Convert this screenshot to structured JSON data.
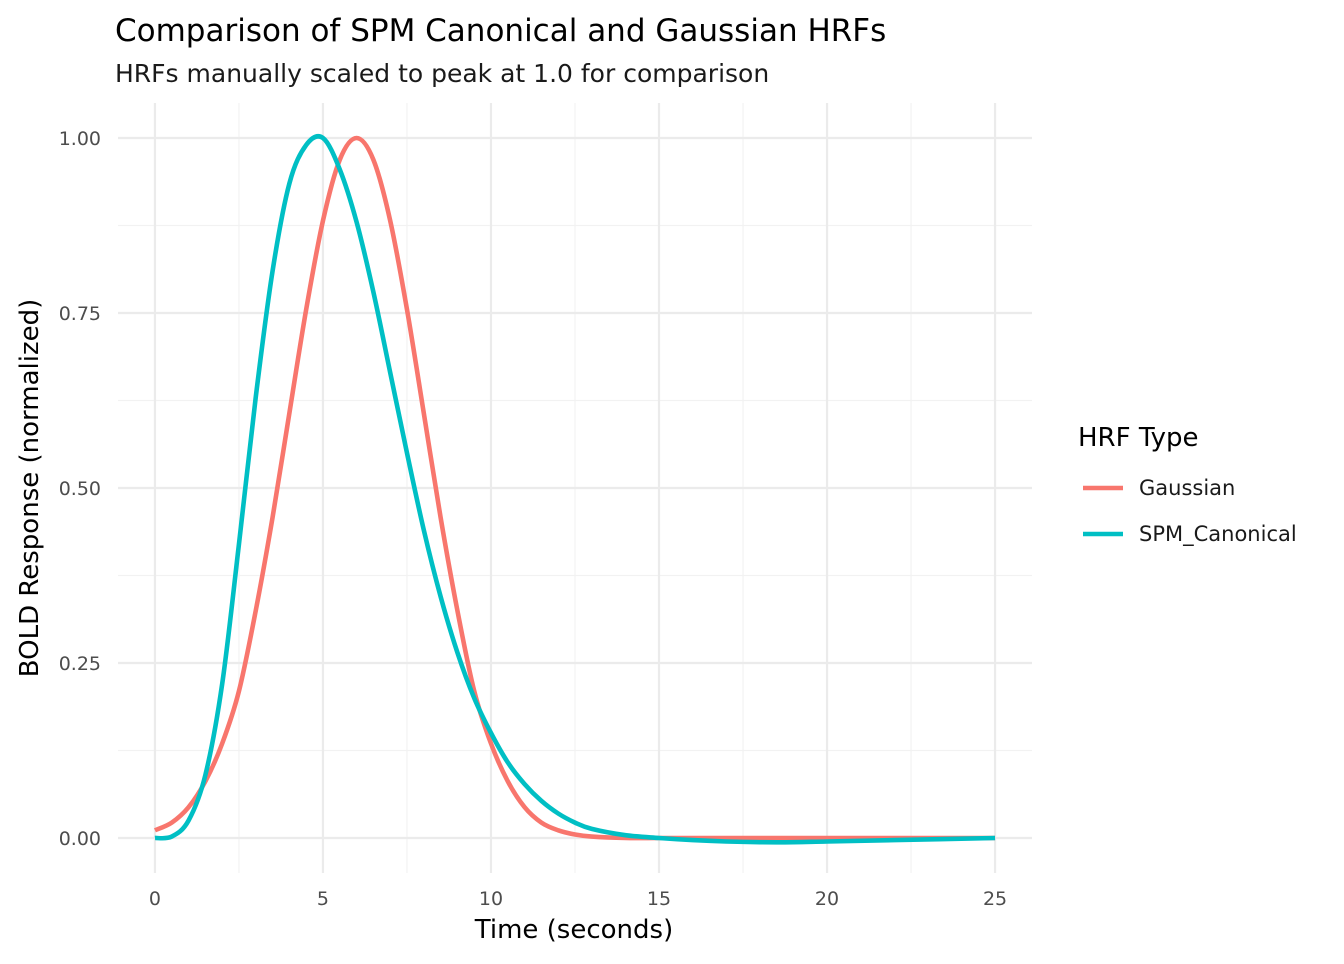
{
  "chart_data": {
    "type": "line",
    "title": "Comparison of SPM Canonical and Gaussian HRFs",
    "subtitle": "HRFs manually scaled to peak at 1.0 for comparison",
    "xlabel": "Time (seconds)",
    "ylabel": "BOLD Response (normalized)",
    "xlim": [
      -1.1,
      26.1
    ],
    "ylim": [
      -0.05,
      1.05
    ],
    "x_ticks": [
      0,
      5,
      10,
      15,
      20,
      25
    ],
    "x_tick_labels": [
      "0",
      "5",
      "10",
      "15",
      "20",
      "25"
    ],
    "y_ticks": [
      0,
      0.25,
      0.5,
      0.75,
      1.0
    ],
    "y_tick_labels": [
      "0.00",
      "0.25",
      "0.50",
      "0.75",
      "1.00"
    ],
    "grid": true,
    "legend": {
      "title": "HRF Type",
      "position": "right"
    },
    "series": [
      {
        "name": "Gaussian",
        "color": "#F8766D",
        "x": [
          0,
          0.5,
          1,
          1.5,
          2,
          2.5,
          3,
          3.5,
          4,
          4.5,
          5,
          5.5,
          6,
          6.5,
          7,
          7.5,
          8,
          8.5,
          9,
          9.5,
          10,
          10.5,
          11,
          11.5,
          12,
          12.5,
          13,
          14,
          15,
          16,
          18,
          20,
          22,
          25
        ],
        "y": [
          0.011,
          0.022,
          0.044,
          0.081,
          0.135,
          0.21,
          0.325,
          0.458,
          0.607,
          0.755,
          0.882,
          0.969,
          1.0,
          0.969,
          0.882,
          0.755,
          0.607,
          0.458,
          0.325,
          0.21,
          0.135,
          0.081,
          0.044,
          0.022,
          0.011,
          0.005,
          0.002,
          0.0,
          0.0,
          0.0,
          0.0,
          0.0,
          0.0,
          0.0
        ]
      },
      {
        "name": "SPM_Canonical",
        "color": "#00BFC4",
        "x": [
          0,
          0.5,
          1,
          1.5,
          2,
          2.5,
          3,
          3.5,
          4,
          4.5,
          5,
          5.5,
          6,
          6.5,
          7,
          7.5,
          8,
          8.5,
          9,
          9.5,
          10,
          10.5,
          11,
          11.5,
          12,
          12.5,
          13,
          14,
          15,
          16,
          17,
          18,
          19,
          20,
          22,
          25
        ],
        "y": [
          0.0,
          0.002,
          0.025,
          0.09,
          0.22,
          0.42,
          0.63,
          0.81,
          0.935,
          0.99,
          1.0,
          0.955,
          0.88,
          0.78,
          0.665,
          0.55,
          0.44,
          0.345,
          0.265,
          0.2,
          0.15,
          0.108,
          0.077,
          0.053,
          0.035,
          0.022,
          0.013,
          0.004,
          0.0,
          -0.003,
          -0.005,
          -0.006,
          -0.006,
          -0.005,
          -0.003,
          0.0
        ]
      }
    ]
  }
}
